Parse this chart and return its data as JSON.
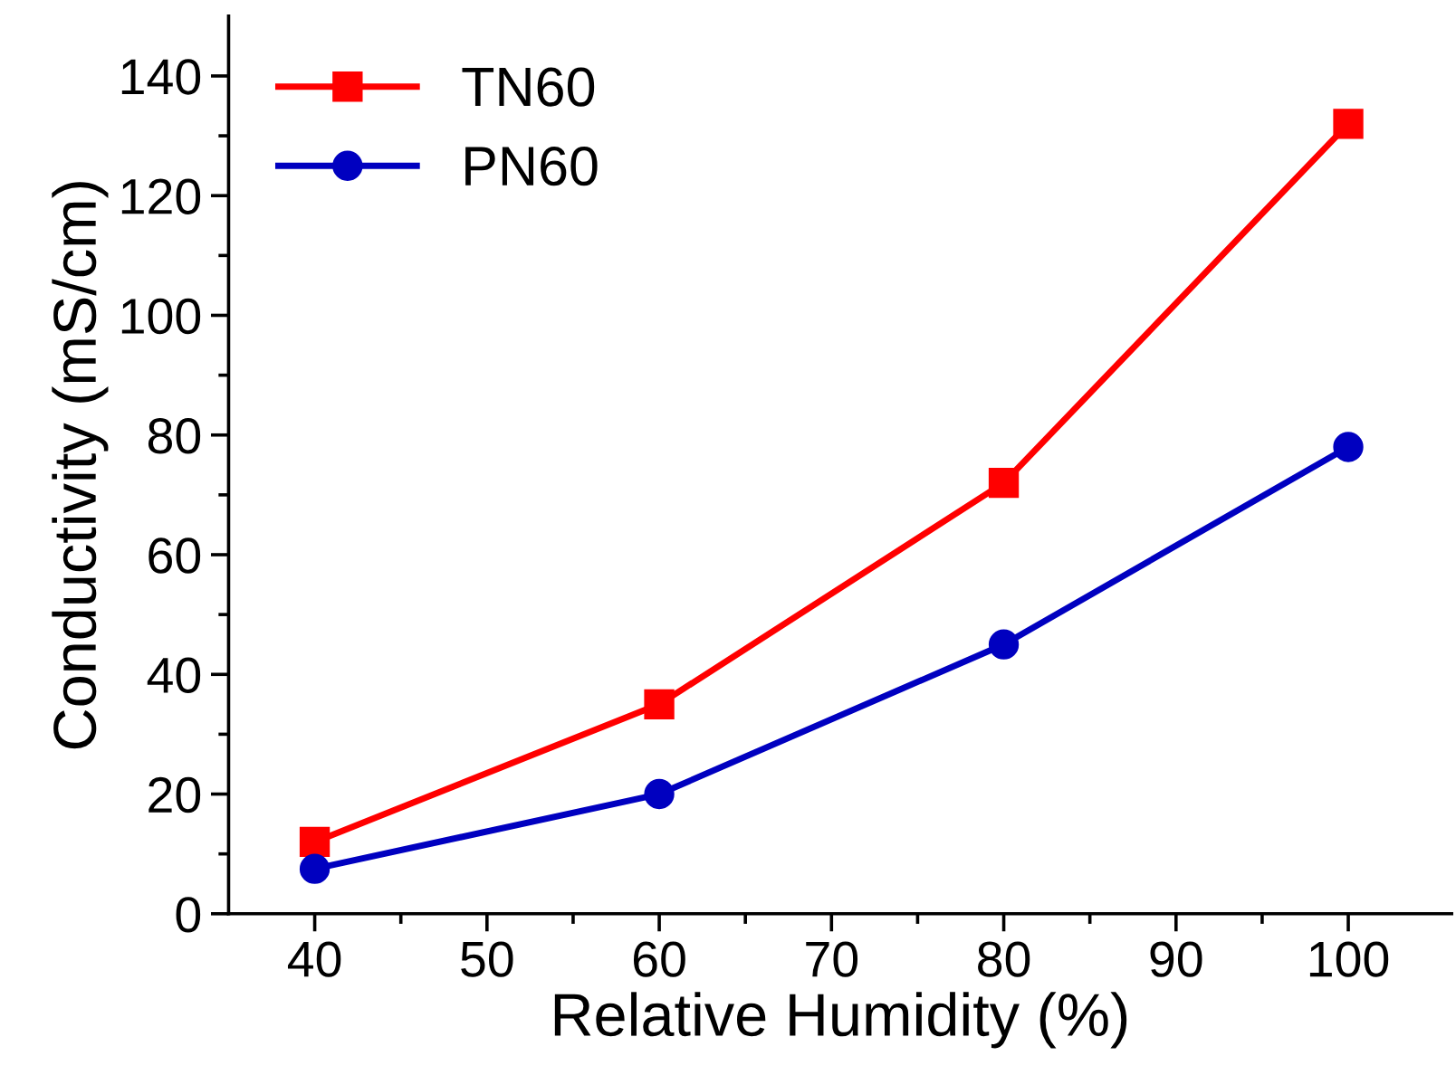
{
  "chart_data": {
    "type": "line",
    "xlabel": "Relative Humidity (%)",
    "ylabel": "Conductivity (mS/cm)",
    "x": [
      40,
      60,
      80,
      100
    ],
    "series": [
      {
        "name": "TN60",
        "color": "#ff0000",
        "marker": "square",
        "values": [
          12,
          35,
          72,
          132
        ]
      },
      {
        "name": "PN60",
        "color": "#0000c0",
        "marker": "circle",
        "values": [
          7.5,
          20,
          45,
          78
        ]
      }
    ],
    "xlim": [
      35,
      106
    ],
    "xticks": [
      40,
      50,
      60,
      70,
      80,
      90,
      100
    ],
    "ylim": [
      0,
      150
    ],
    "yticks": [
      0,
      20,
      40,
      60,
      80,
      100,
      120,
      140
    ],
    "grid": false,
    "legend": "top left",
    "line_style": "solid"
  }
}
